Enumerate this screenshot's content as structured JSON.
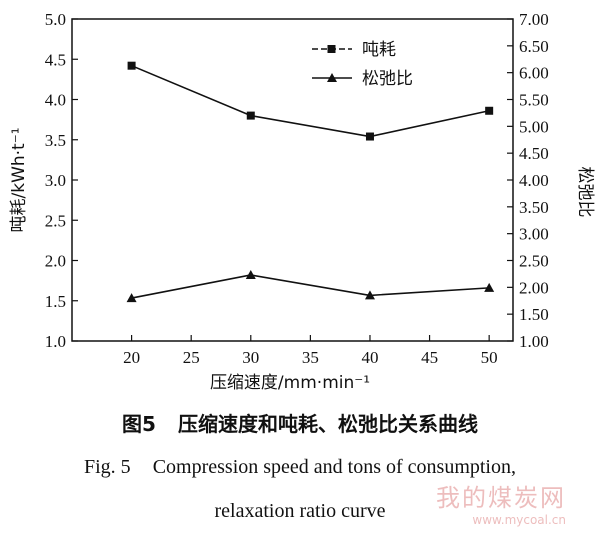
{
  "chart_data": {
    "type": "line",
    "x": [
      20,
      30,
      40,
      50
    ],
    "xticks": [
      "20",
      "25",
      "30",
      "35",
      "40",
      "45",
      "50"
    ],
    "xlim": [
      15,
      52
    ],
    "xlabel": "压缩速度/mm·min⁻¹",
    "ylabel": "吨耗/kWh·t⁻¹",
    "y2label": "松弛比",
    "ylim": [
      1.0,
      5.0
    ],
    "y2lim": [
      1.0,
      7.0
    ],
    "yticks": [
      "1.0",
      "1.5",
      "2.0",
      "2.5",
      "3.0",
      "3.5",
      "4.0",
      "4.5",
      "5.0"
    ],
    "y2ticks": [
      "1.00",
      "1.50",
      "2.00",
      "2.50",
      "3.00",
      "3.50",
      "4.00",
      "4.50",
      "5.00",
      "5.50",
      "6.00",
      "6.50",
      "7.00"
    ],
    "series": [
      {
        "name": "吨耗",
        "axis": "left",
        "marker": "square",
        "values": [
          4.42,
          3.8,
          3.54,
          3.86
        ]
      },
      {
        "name": "松弛比",
        "axis": "right",
        "marker": "triangle",
        "values": [
          1.8,
          2.23,
          1.85,
          1.99
        ]
      }
    ],
    "legend_position": "top-right",
    "grid": false
  },
  "caption": {
    "cn_label": "图5",
    "cn_text": "压缩速度和吨耗、松弛比关系曲线",
    "en_label": "Fig. 5",
    "en_line1": "Compression speed and tons of consumption,",
    "en_line2": "relaxation ratio curve"
  },
  "watermark": {
    "name": "我的煤炭网",
    "url": "www.mycoal.cn"
  }
}
